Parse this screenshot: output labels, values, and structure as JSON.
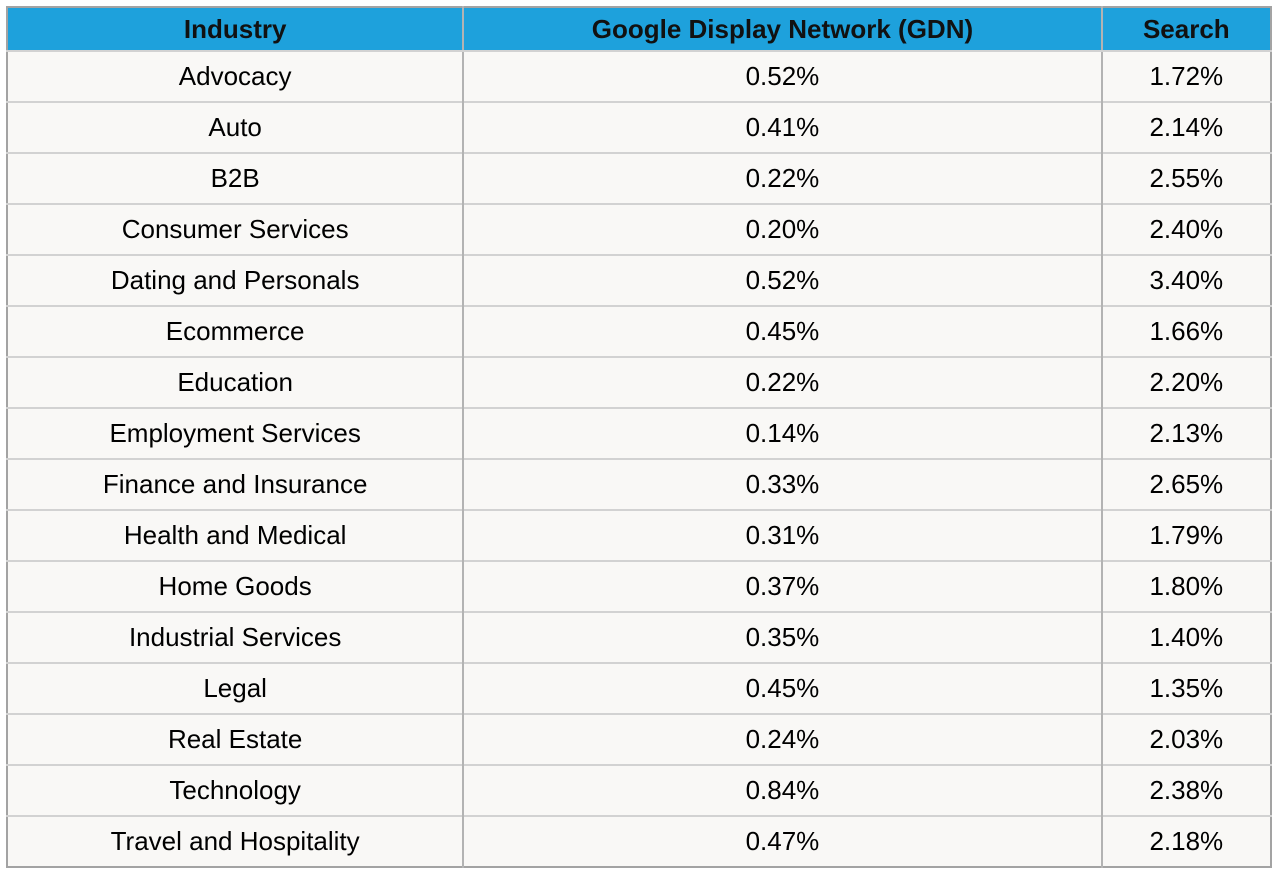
{
  "colors": {
    "header_bg": "#1ea1dc",
    "header_text": "#111111",
    "cell_bg": "#f9f8f6",
    "cell_text": "#000000",
    "border_outer": "#a3a3a3",
    "border_vertical": "#b3b3b3",
    "border_horizontal": "#d2d2d2",
    "page_bg": "#ffffff"
  },
  "table": {
    "columns": [
      "Industry",
      "Google Display Network (GDN)",
      "Search"
    ],
    "rows": [
      {
        "industry": "Advocacy",
        "gdn": "0.52%",
        "search": "1.72%"
      },
      {
        "industry": "Auto",
        "gdn": "0.41%",
        "search": "2.14%"
      },
      {
        "industry": "B2B",
        "gdn": "0.22%",
        "search": "2.55%"
      },
      {
        "industry": "Consumer Services",
        "gdn": "0.20%",
        "search": "2.40%"
      },
      {
        "industry": "Dating and Personals",
        "gdn": "0.52%",
        "search": "3.40%"
      },
      {
        "industry": "Ecommerce",
        "gdn": "0.45%",
        "search": "1.66%"
      },
      {
        "industry": "Education",
        "gdn": "0.22%",
        "search": "2.20%"
      },
      {
        "industry": "Employment Services",
        "gdn": "0.14%",
        "search": "2.13%"
      },
      {
        "industry": "Finance and Insurance",
        "gdn": "0.33%",
        "search": "2.65%"
      },
      {
        "industry": "Health and Medical",
        "gdn": "0.31%",
        "search": "1.79%"
      },
      {
        "industry": "Home Goods",
        "gdn": "0.37%",
        "search": "1.80%"
      },
      {
        "industry": "Industrial Services",
        "gdn": "0.35%",
        "search": "1.40%"
      },
      {
        "industry": "Legal",
        "gdn": "0.45%",
        "search": "1.35%"
      },
      {
        "industry": "Real Estate",
        "gdn": "0.24%",
        "search": "2.03%"
      },
      {
        "industry": "Technology",
        "gdn": "0.84%",
        "search": "2.38%"
      },
      {
        "industry": "Travel and Hospitality",
        "gdn": "0.47%",
        "search": "2.18%"
      }
    ]
  },
  "chart_data": {
    "type": "table",
    "title": "",
    "columns": [
      "Industry",
      "Google Display Network (GDN)",
      "Search"
    ],
    "categories": [
      "Advocacy",
      "Auto",
      "B2B",
      "Consumer Services",
      "Dating and Personals",
      "Ecommerce",
      "Education",
      "Employment Services",
      "Finance and Insurance",
      "Health and Medical",
      "Home Goods",
      "Industrial Services",
      "Legal",
      "Real Estate",
      "Technology",
      "Travel and Hospitality"
    ],
    "series": [
      {
        "name": "Google Display Network (GDN)",
        "unit": "%",
        "values": [
          0.52,
          0.41,
          0.22,
          0.2,
          0.52,
          0.45,
          0.22,
          0.14,
          0.33,
          0.31,
          0.37,
          0.35,
          0.45,
          0.24,
          0.84,
          0.47
        ]
      },
      {
        "name": "Search",
        "unit": "%",
        "values": [
          1.72,
          2.14,
          2.55,
          2.4,
          3.4,
          1.66,
          2.2,
          2.13,
          2.65,
          1.79,
          1.8,
          1.4,
          1.35,
          2.03,
          2.38,
          2.18
        ]
      }
    ]
  }
}
